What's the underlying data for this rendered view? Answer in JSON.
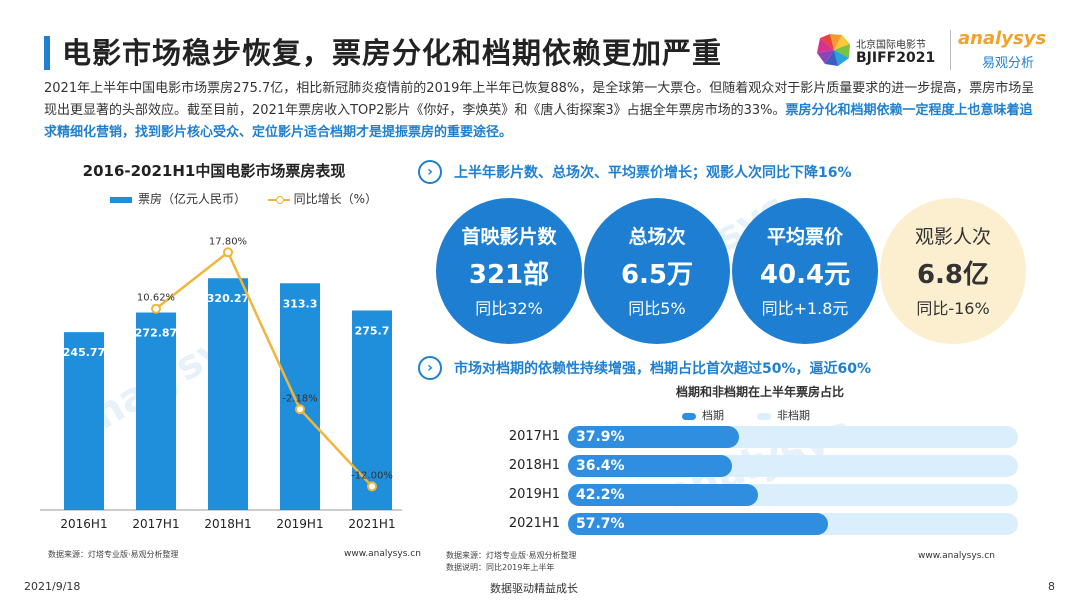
{
  "header": {
    "title": "电影市场稳步恢复，票房分化和档期依赖更加严重",
    "festival_cn": "北京国际电影节",
    "festival_en": "BJIFF2021",
    "brand_en": "analysys",
    "brand_cn": "易观分析"
  },
  "intro": {
    "part1": "2021年上半年中国电影市场票房275.7亿，相比新冠肺炎疫情前的2019年上半年已恢复88%，是全球第一大票仓。但随着观众对于影片质量要求的进一步提高，票房市场呈现出更显著的头部效应。截至目前，2021年票房收入TOP2影片《你好，李焕英》和《唐人街探案3》占据全年票房市场的33%。",
    "highlight": "票房分化和档期依赖一定程度上也意味着追求精细化营销，找到影片核心受众、定位影片适合档期才是提振票房的重要途径。"
  },
  "left_chart": {
    "title": "2016-2021H1中国电影市场票房表现",
    "legend_bar": "票房（亿元人民币）",
    "legend_line": "同比增长（%）",
    "source": "数据来源：灯塔专业版·易观分析整理",
    "site": "www.analysys.cn"
  },
  "chart_data": [
    {
      "type": "bar",
      "title": "2016-2021H1中国电影市场票房表现",
      "categories": [
        "2016H1",
        "2017H1",
        "2018H1",
        "2019H1",
        "2021H1"
      ],
      "series": [
        {
          "name": "票房（亿元人民币）",
          "type": "bar",
          "values": [
            245.77,
            272.87,
            320.27,
            313.3,
            275.7
          ],
          "labels": [
            "245.77",
            "272.87",
            "320.27",
            "313.3",
            "275.7"
          ]
        },
        {
          "name": "同比增长（%）",
          "type": "line",
          "values": [
            null,
            10.62,
            17.8,
            -2.18,
            -12.0
          ],
          "labels": [
            "",
            "10.62%",
            "17.80%",
            "-2.18%",
            "-12.00%"
          ]
        }
      ],
      "ylim_bar": [
        0,
        380
      ],
      "ylim_line": [
        -15,
        20
      ]
    },
    {
      "type": "bar",
      "title": "档期和非档期在上半年票房占比",
      "orientation": "horizontal",
      "stacked": true,
      "categories": [
        "2017H1",
        "2018H1",
        "2019H1",
        "2021H1"
      ],
      "series": [
        {
          "name": "档期",
          "values": [
            37.9,
            36.4,
            42.2,
            57.7
          ],
          "labels": [
            "37.9%",
            "36.4%",
            "42.2%",
            "57.7%"
          ]
        },
        {
          "name": "非档期",
          "values": [
            62.1,
            63.6,
            57.8,
            42.3
          ]
        }
      ],
      "xlim": [
        0,
        100
      ]
    }
  ],
  "section1": {
    "heading": "上半年影片数、总场次、平均票价增长；观影人次同比下降16%",
    "circles": [
      {
        "label": "首映影片数",
        "value": "321部",
        "sub": "同比32%",
        "color": "#1e7fd2"
      },
      {
        "label": "总场次",
        "value": "6.5万",
        "sub": "同比5%",
        "color": "#1e7fd2"
      },
      {
        "label": "平均票价",
        "value": "40.4元",
        "sub": "同比+1.8元",
        "color": "#1e7fd2"
      },
      {
        "label": "观影人次",
        "value": "6.8亿",
        "sub": "同比-16%",
        "color": "#fbefcf"
      }
    ]
  },
  "section2": {
    "heading": "市场对档期的依赖性持续增强，档期占比首次超过50%，逼近60%",
    "chart_title": "档期和非档期在上半年票房占比",
    "legend_a": "档期",
    "legend_b": "非档期",
    "source1": "数据来源：灯塔专业版·易观分析整理",
    "source2": "数据说明：同比2019年上半年",
    "site": "www.analysys.cn"
  },
  "footer": {
    "date": "2021/9/18",
    "slogan": "数据驱动精益成长",
    "page": "8"
  },
  "colors": {
    "accent": "#1f7fd0",
    "bar": "#1f8fdb",
    "line": "#f0b53a",
    "track": "#dbeefb"
  }
}
